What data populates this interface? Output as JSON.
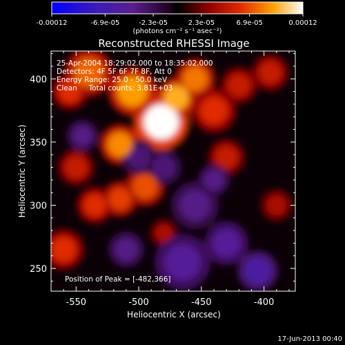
{
  "colorbar": {
    "tick_labels": [
      "-0.00012",
      "-6.9e-05",
      "-2.3e-05",
      "2.3e-05",
      "6.9e-05",
      "0.00012"
    ],
    "tick_values": [
      -0.00012,
      -6.9e-05,
      -2.3e-05,
      2.3e-05,
      6.9e-05,
      0.00012
    ],
    "range": [
      -0.00012,
      0.00012
    ],
    "unit_label": "(photons cm⁻² s⁻¹ asec⁻²)"
  },
  "chart_data": {
    "type": "heatmap",
    "title": "Reconstructed RHESSI Image",
    "xlabel": "Heliocentric X (arcsec)",
    "ylabel": "Heliocentric Y (arcsec)",
    "xlim": [
      -570,
      -375
    ],
    "ylim": [
      232,
      422
    ],
    "x_ticks": [
      -550,
      -500,
      -450,
      -400
    ],
    "y_ticks": [
      250,
      300,
      350,
      400
    ],
    "x_tick_labels": [
      "-550",
      "-500",
      "-450",
      "-400"
    ],
    "y_tick_labels": [
      "250",
      "300",
      "350",
      "400"
    ],
    "annotations": [
      "25-Apr-2004 18:29:02.000 to 18:35:02.000",
      "Detectors: 4F 5F 6F 7F 8F, Att 0",
      "Energy Range: 25.0 - 50.0 keV",
      "Clean     Total counts: 3.81E+03"
    ],
    "peak_text": "Position of Peak = [-482,366]",
    "peak": {
      "x": -482,
      "y": 366,
      "value": 0.00012
    },
    "blobs": [
      {
        "x": -482,
        "y": 366,
        "r": 14,
        "v": 0.00012
      },
      {
        "x": -470,
        "y": 385,
        "r": 10,
        "v": 9.5e-05
      },
      {
        "x": -505,
        "y": 390,
        "r": 12,
        "v": 9e-05
      },
      {
        "x": -455,
        "y": 400,
        "r": 10,
        "v": 8e-05
      },
      {
        "x": -540,
        "y": 405,
        "r": 12,
        "v": 7.5e-05
      },
      {
        "x": -515,
        "y": 348,
        "r": 10,
        "v": 8.5e-05
      },
      {
        "x": -555,
        "y": 390,
        "r": 9,
        "v": 6e-05
      },
      {
        "x": -440,
        "y": 375,
        "r": 11,
        "v": 6e-05
      },
      {
        "x": -420,
        "y": 395,
        "r": 9,
        "v": 5e-05
      },
      {
        "x": -395,
        "y": 405,
        "r": 9,
        "v": 5e-05
      },
      {
        "x": -495,
        "y": 315,
        "r": 10,
        "v": 7e-05
      },
      {
        "x": -515,
        "y": 305,
        "r": 9,
        "v": 6.5e-05
      },
      {
        "x": -535,
        "y": 300,
        "r": 9,
        "v": 6e-05
      },
      {
        "x": -550,
        "y": 330,
        "r": 9,
        "v": 5e-05
      },
      {
        "x": -560,
        "y": 265,
        "r": 10,
        "v": 6e-05
      },
      {
        "x": -430,
        "y": 338,
        "r": 9,
        "v": 5e-05
      },
      {
        "x": -390,
        "y": 300,
        "r": 8,
        "v": 4e-05
      },
      {
        "x": -480,
        "y": 278,
        "r": 7,
        "v": 4e-05
      },
      {
        "x": -455,
        "y": 300,
        "r": 12,
        "v": -4e-05
      },
      {
        "x": -465,
        "y": 255,
        "r": 14,
        "v": -5e-05
      },
      {
        "x": -430,
        "y": 270,
        "r": 11,
        "v": -5e-05
      },
      {
        "x": -405,
        "y": 248,
        "r": 10,
        "v": -6e-05
      },
      {
        "x": -510,
        "y": 265,
        "r": 9,
        "v": -4e-05
      },
      {
        "x": -500,
        "y": 338,
        "r": 9,
        "v": -3.5e-05
      },
      {
        "x": -545,
        "y": 355,
        "r": 8,
        "v": -4e-05
      },
      {
        "x": -480,
        "y": 330,
        "r": 9,
        "v": -3.5e-05
      },
      {
        "x": -440,
        "y": 320,
        "r": 8,
        "v": -4e-05
      }
    ]
  },
  "footer": {
    "date": "17-Jun-2013 00:40"
  }
}
